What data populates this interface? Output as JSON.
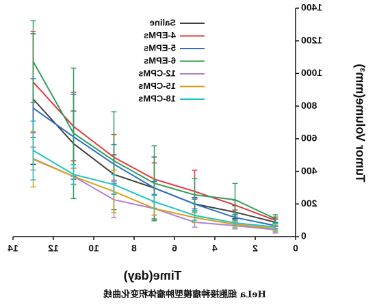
{
  "chart_data": {
    "type": "line",
    "xlabel": "Time(day)",
    "ylabel": "Tumor Volume(mm³)",
    "caption": "HeLa 细胞接种瘤模型肿瘤体积变化曲线",
    "x": [
      1,
      3,
      5,
      7,
      9,
      11,
      13
    ],
    "xlim": [
      0,
      14
    ],
    "xticks": [
      0,
      2,
      4,
      6,
      8,
      10,
      12,
      14
    ],
    "ylim": [
      0,
      1400
    ],
    "yticks": [
      0,
      200,
      400,
      600,
      800,
      1000,
      1200,
      1400
    ],
    "legend": "upper left",
    "mirrored": true,
    "series": [
      {
        "name": "Saline",
        "color": "#404040",
        "values": [
          88,
          150,
          200,
          298,
          381,
          570,
          843
        ],
        "errors": [
          20,
          40,
          40,
          190,
          120,
          200,
          400
        ]
      },
      {
        "name": "4-EPMs",
        "color": "#e8383d",
        "values": [
          100,
          193,
          277,
          352,
          486,
          675,
          947
        ],
        "errors": [
          20,
          30,
          130,
          100,
          140,
          210,
          310
        ]
      },
      {
        "name": "5-EPMs",
        "color": "#2a6fc9",
        "values": [
          67,
          117,
          200,
          298,
          444,
          612,
          788
        ],
        "errors": [
          20,
          20,
          30,
          40,
          120,
          260,
          180
        ]
      },
      {
        "name": "6-EPMs",
        "color": "#2e9e5b",
        "values": [
          109,
          226,
          256,
          327,
          465,
          633,
          1073
        ],
        "errors": [
          25,
          100,
          100,
          230,
          300,
          400,
          250
        ]
      },
      {
        "name": "12-CPMs",
        "color": "#b07fd6",
        "values": [
          42,
          67,
          88,
          172,
          226,
          369,
          478
        ],
        "errors": [
          20,
          20,
          30,
          40,
          110,
          50,
          70
        ]
      },
      {
        "name": "15-CPMs",
        "color": "#d9a01a",
        "values": [
          50,
          75,
          117,
          172,
          277,
          369,
          474
        ],
        "errors": [
          20,
          20,
          30,
          40,
          130,
          50,
          170
        ]
      },
      {
        "name": "18-CPMs",
        "color": "#1fc4c4",
        "values": [
          59,
          84,
          130,
          214,
          319,
          381,
          528
        ],
        "errors": [
          20,
          20,
          30,
          40,
          60,
          60,
          180
        ]
      }
    ]
  }
}
